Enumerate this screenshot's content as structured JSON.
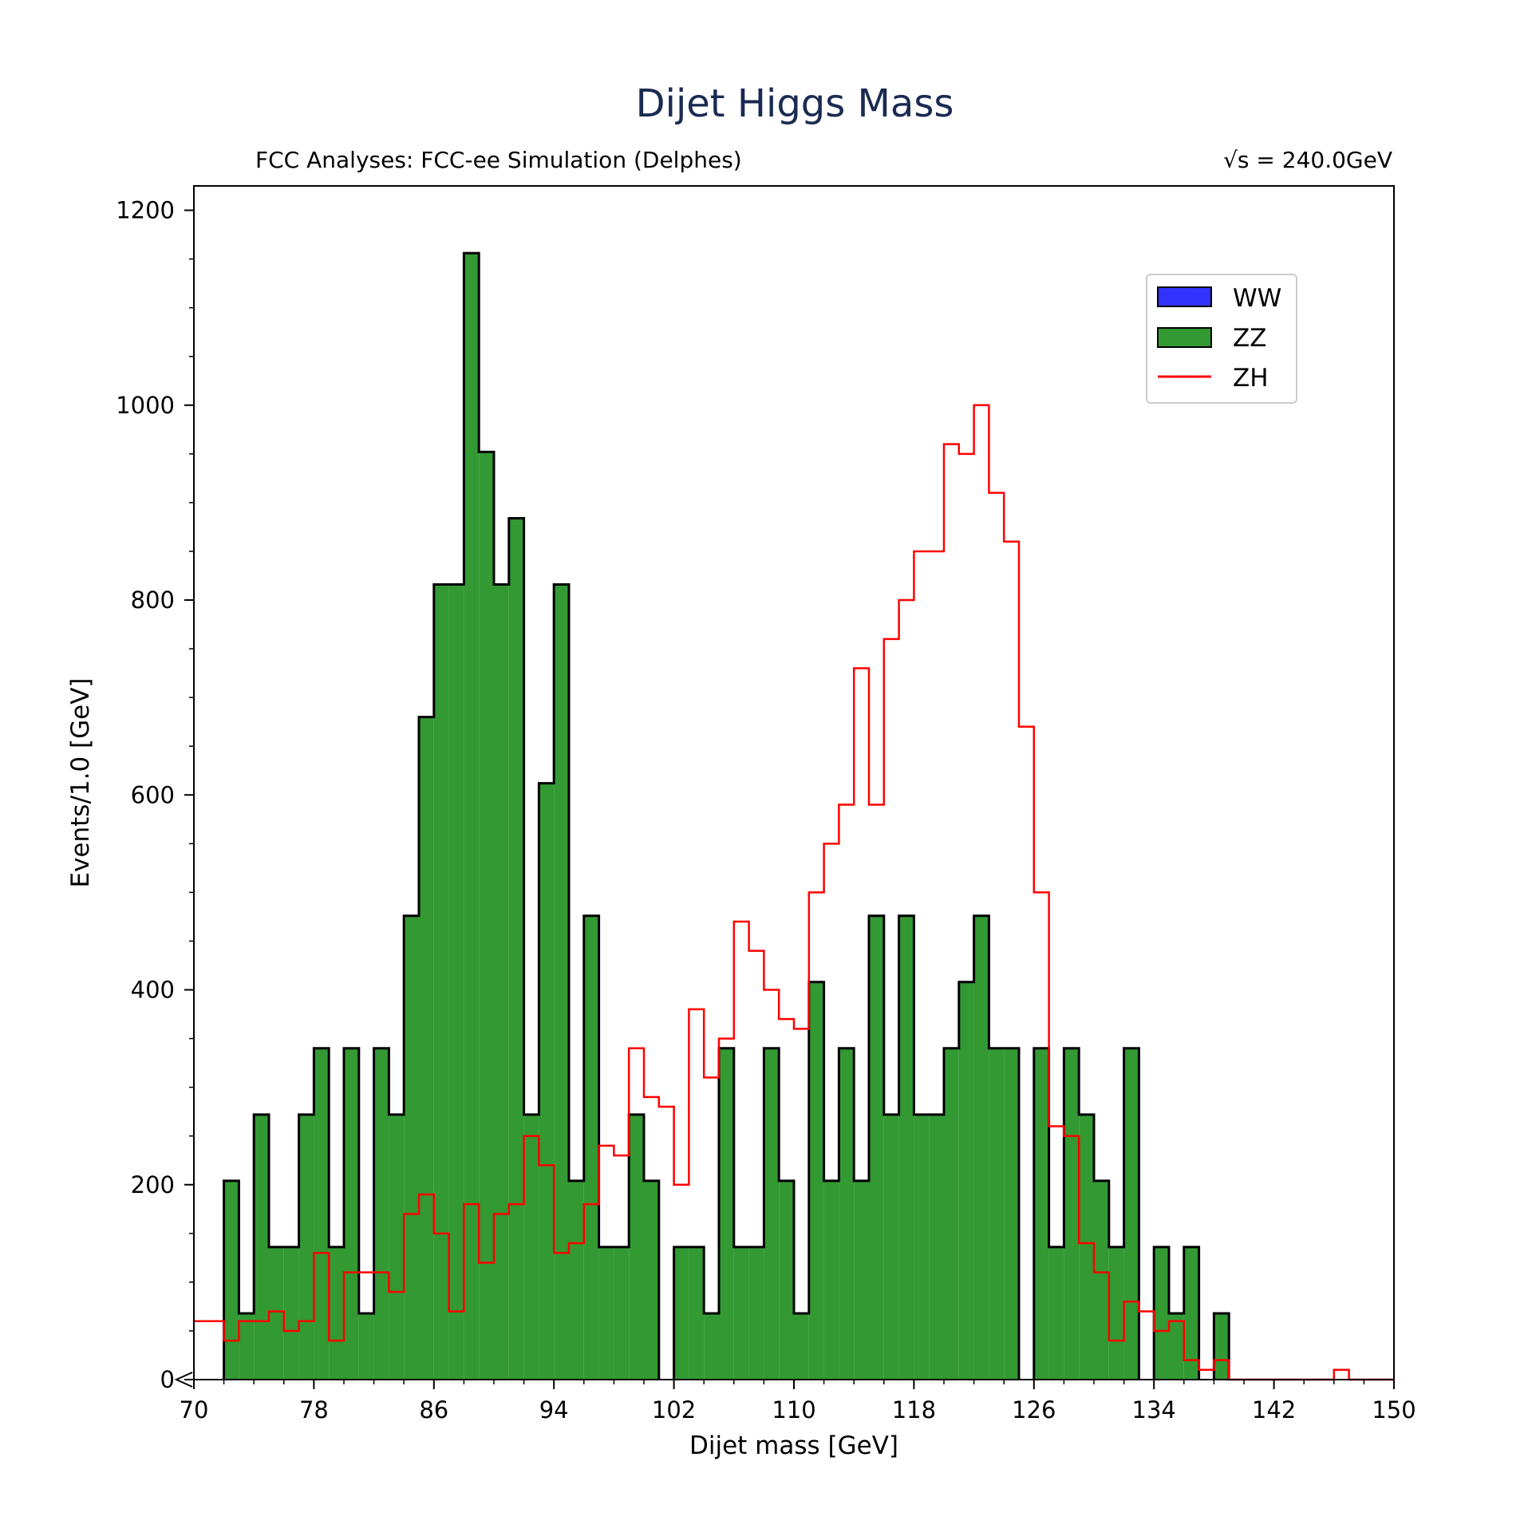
{
  "chart_data": {
    "type": "histogram",
    "title": "Dijet Higgs Mass",
    "subtitle_left": "FCC Analyses: FCC-ee Simulation (Delphes)",
    "subtitle_right": "√s = 240.0GeV",
    "xlabel": "Dijet mass [GeV]",
    "ylabel": "Events/1.0 [GeV]",
    "xlim": [
      70,
      150
    ],
    "ylim": [
      0,
      1225
    ],
    "bin_width": 1,
    "xticks": [
      70,
      78,
      86,
      94,
      102,
      110,
      118,
      126,
      134,
      142,
      150
    ],
    "xtick_labels": [
      "70",
      "78",
      "86",
      "94",
      "102",
      "110",
      "118",
      "126",
      "134",
      "142",
      "150"
    ],
    "yticks": [
      0,
      200,
      400,
      600,
      800,
      1000,
      1200
    ],
    "ytick_labels": [
      "0",
      "200",
      "400",
      "600",
      "800",
      "1000",
      "1200"
    ],
    "legend_position": "upper-right",
    "grid": false,
    "series": [
      {
        "name": "WW",
        "style": "filled",
        "color": "#3333ff",
        "x_start": 70,
        "values": [
          0,
          0,
          0,
          0,
          0,
          0,
          0,
          0,
          0,
          0,
          0,
          0,
          0,
          0,
          0,
          0,
          0,
          0,
          0,
          0,
          0,
          0,
          0,
          0,
          0,
          0,
          0,
          0,
          0,
          0,
          0,
          0,
          0,
          0,
          0,
          0,
          0,
          0,
          0,
          0,
          0,
          0,
          0,
          0,
          0,
          0,
          0,
          0,
          0,
          0,
          0,
          0,
          0,
          0,
          0,
          0,
          0,
          0,
          0,
          0,
          0,
          0,
          0,
          0,
          0,
          0,
          0,
          0,
          0,
          0,
          0,
          0,
          0,
          0,
          0,
          0,
          0,
          0,
          0,
          0
        ]
      },
      {
        "name": "ZZ",
        "style": "filled",
        "color": "#339933",
        "x_start": 70,
        "values": [
          0,
          0,
          204,
          68,
          272,
          136,
          136,
          272,
          340,
          136,
          340,
          68,
          340,
          272,
          476,
          680,
          816,
          816,
          1156,
          952,
          816,
          884,
          272,
          612,
          816,
          204,
          476,
          136,
          136,
          272,
          204,
          0,
          136,
          136,
          68,
          340,
          136,
          136,
          340,
          204,
          68,
          408,
          204,
          340,
          204,
          476,
          272,
          476,
          272,
          272,
          340,
          408,
          476,
          340,
          340,
          0,
          340,
          136,
          340,
          272,
          204,
          136,
          340,
          0,
          136,
          68,
          136,
          0,
          68,
          0,
          0,
          0,
          0,
          0,
          0,
          0,
          0,
          0,
          0,
          0
        ]
      },
      {
        "name": "ZH",
        "style": "step",
        "color": "#ff0000",
        "x_start": 70,
        "values": [
          60,
          60,
          40,
          60,
          60,
          70,
          50,
          60,
          130,
          40,
          110,
          110,
          110,
          90,
          170,
          190,
          150,
          70,
          180,
          120,
          170,
          180,
          250,
          220,
          130,
          140,
          180,
          240,
          230,
          340,
          290,
          280,
          200,
          380,
          310,
          350,
          470,
          440,
          400,
          370,
          360,
          500,
          550,
          590,
          730,
          590,
          760,
          800,
          850,
          850,
          960,
          950,
          1000,
          910,
          860,
          670,
          500,
          260,
          250,
          140,
          110,
          40,
          80,
          70,
          50,
          60,
          20,
          10,
          20,
          0,
          0,
          0,
          0,
          0,
          0,
          0,
          10,
          0,
          0,
          0
        ]
      }
    ]
  }
}
